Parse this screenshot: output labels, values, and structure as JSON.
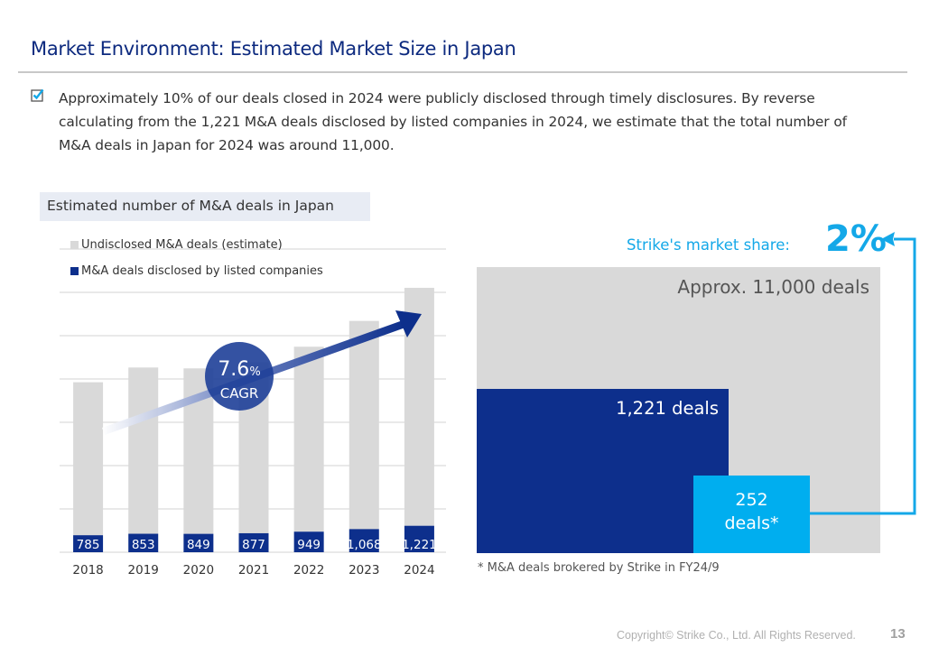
{
  "page": {
    "title": "Market Environment: Estimated Market Size in Japan",
    "bullet": "Approximately 10% of our deals closed in 2024 were publicly disclosed through timely disclosures. By reverse calculating from the 1,221 M&A deals disclosed by listed companies in 2024, we estimate that the total number of M&A deals in Japan for 2024 was around 11,000.",
    "bullet_icon": "checkbox-checked-icon",
    "copyright": "Copyright© Strike Co., Ltd. All Rights Reserved.",
    "page_number": "13"
  },
  "colors": {
    "title": "#0d2a7f",
    "navy": "#0d2f8c",
    "undisclosed_gray": "#d9d9d9",
    "cyan": "#00aeef",
    "cagr_circle": "#2a4a9e"
  },
  "chart_data": [
    {
      "type": "bar",
      "stacked": true,
      "title": "Estimated number of M&A deals in Japan",
      "categories": [
        "2018",
        "2019",
        "2020",
        "2021",
        "2022",
        "2023",
        "2024"
      ],
      "series": [
        {
          "name": "M&A deals disclosed by listed companies",
          "values": [
            785,
            853,
            849,
            877,
            949,
            1068,
            1221
          ],
          "labels": [
            "785",
            "853",
            "849",
            "877",
            "949",
            "1,068",
            "1,221"
          ],
          "color": "#0d2f8c"
        },
        {
          "name": "Undisclosed M&A deals (estimate)",
          "values": [
            7065,
            7677,
            7641,
            7893,
            8541,
            9612,
            10989
          ],
          "color": "#d9d9d9"
        }
      ],
      "ylim": [
        0,
        14000
      ],
      "ytick_step": 2000,
      "grid": true,
      "legend": "top-left",
      "annotation": {
        "value": "7.6",
        "unit": "%",
        "label": "CAGR"
      },
      "xlabel": "",
      "ylabel": ""
    },
    {
      "type": "area-proportion",
      "title": "Strike's market share",
      "share_label": "Strike's market share:",
      "share_value": "2%",
      "blocks": [
        {
          "name": "total",
          "label": "Approx. 11,000 deals",
          "value": 11000,
          "color": "#d9d9d9"
        },
        {
          "name": "disclosed",
          "label": "1,221 deals",
          "value": 1221,
          "color": "#0d2f8c"
        },
        {
          "name": "strike",
          "label_line1": "252",
          "label_line2": "deals*",
          "value": 252,
          "color": "#00aeef"
        }
      ],
      "footnote": "* M&A deals brokered by Strike in FY24/9"
    }
  ]
}
